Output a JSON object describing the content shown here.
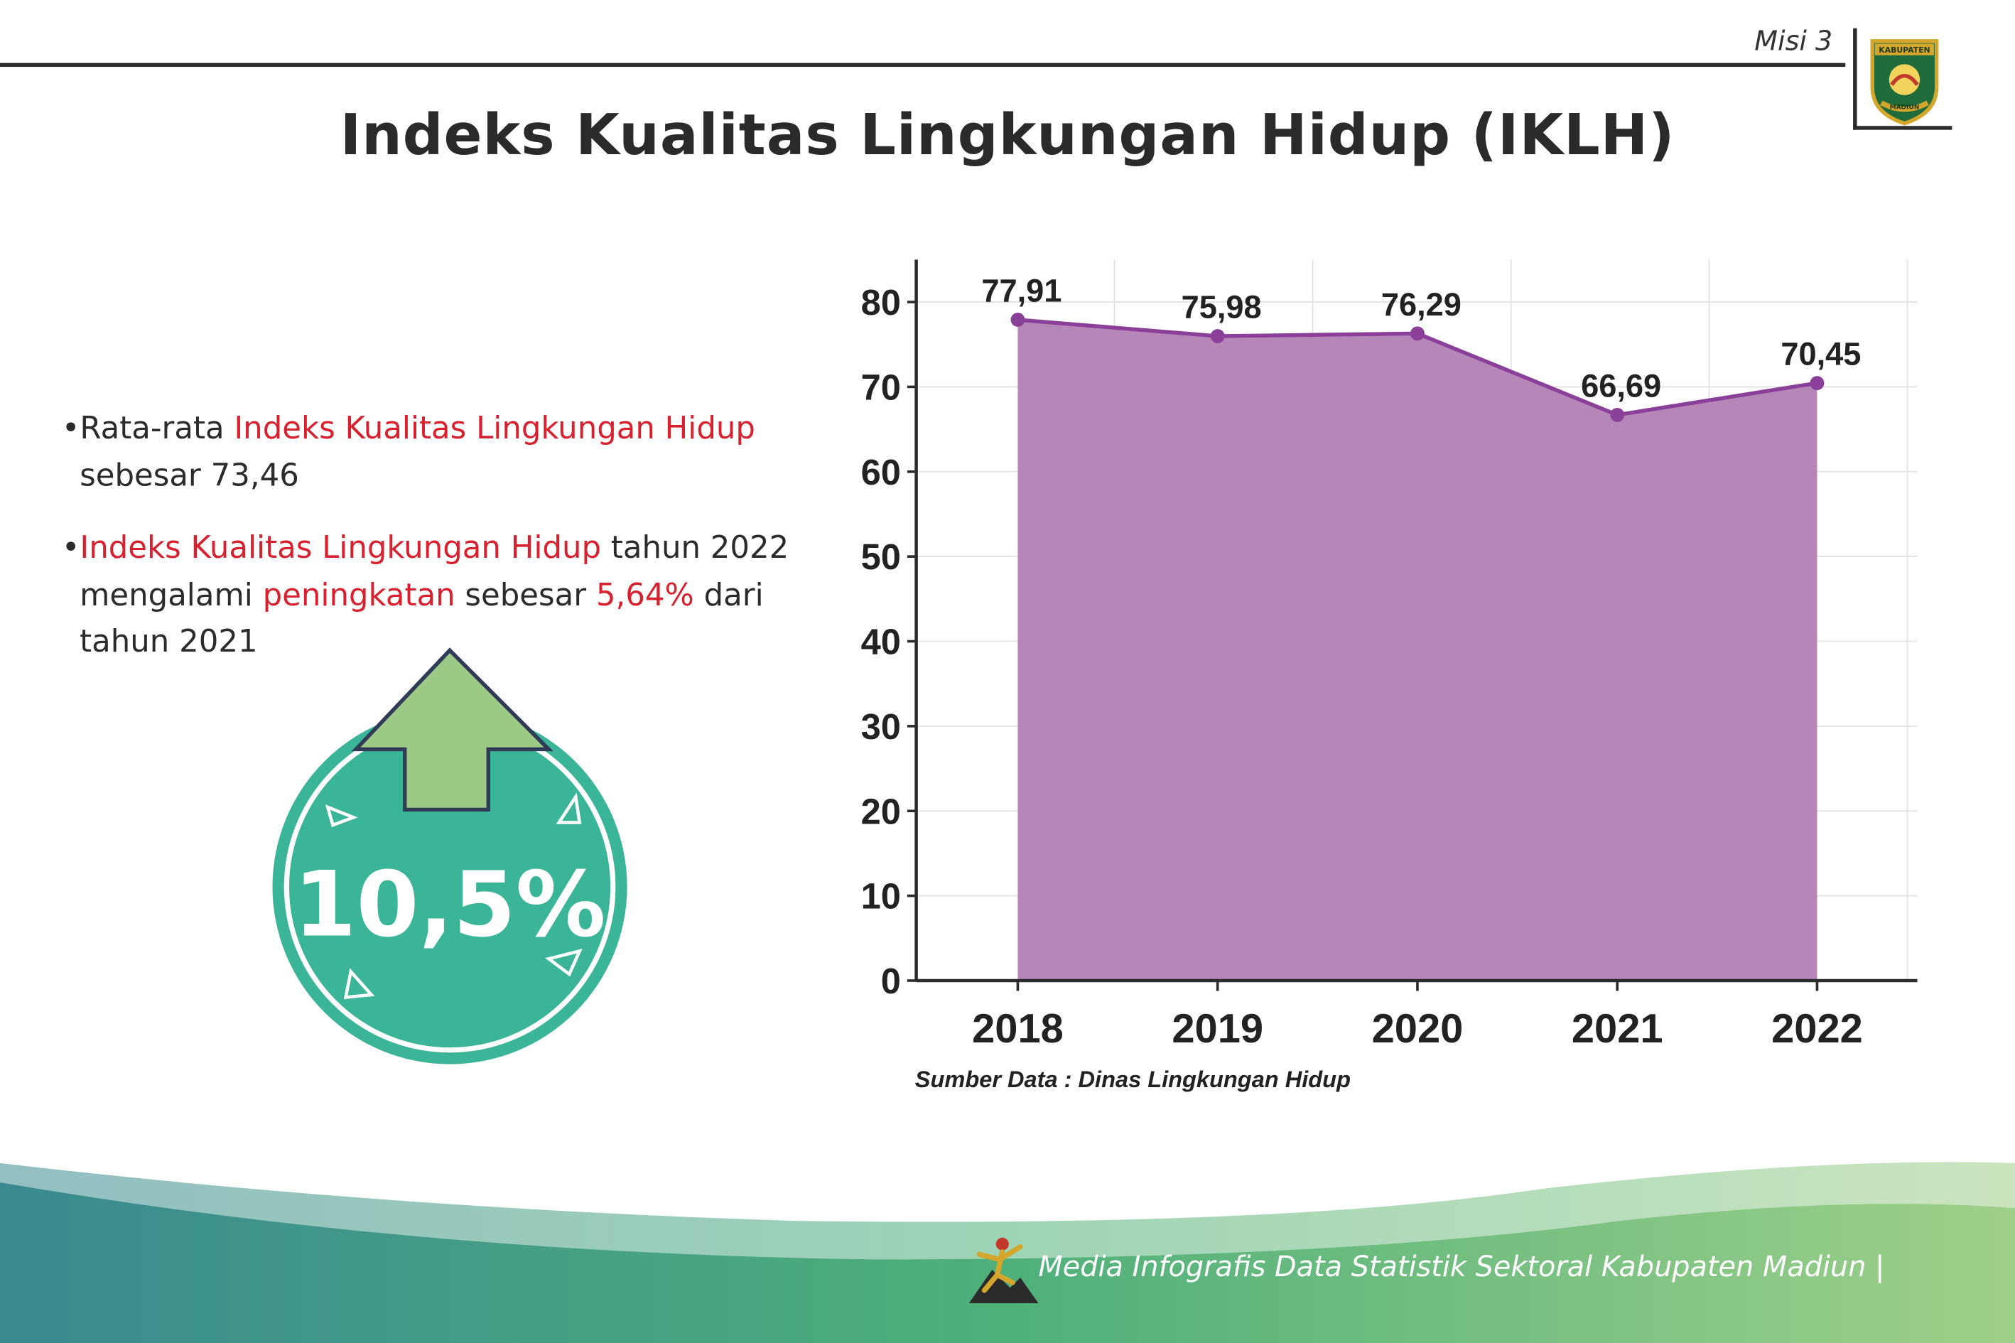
{
  "header": {
    "page_label": "Misi 3",
    "logo_text_top": "KABUPATEN",
    "logo_text_bottom": "MADIUN"
  },
  "title": "Indeks Kualitas Lingkungan Hidup (IKLH)",
  "bullets": [
    {
      "prefix": "•Rata-rata ",
      "highlight": "Indeks Kualitas Lingkungan Hidup",
      "rest": " sebesar 73,46"
    },
    {
      "prefix": "•",
      "highlight": "Indeks Kualitas Lingkungan Hidup",
      "mid": " tahun 2022 mengalami ",
      "highlight2": "peningkatan",
      "mid2": " sebesar ",
      "highlight3": "5,64%",
      "rest": " dari tahun 2021"
    }
  ],
  "badge": {
    "value": "10,5%",
    "circle_color": "#3bb597",
    "arrow_color": "#9cc985"
  },
  "chart_data": {
    "type": "area",
    "categories": [
      "2018",
      "2019",
      "2020",
      "2021",
      "2022"
    ],
    "values": [
      77.91,
      75.98,
      76.29,
      66.69,
      70.45
    ],
    "data_labels": [
      "77,91",
      "75,98",
      "76,29",
      "66,69",
      "70,45"
    ],
    "y_ticks": [
      0,
      10,
      20,
      30,
      40,
      50,
      60,
      70,
      80
    ],
    "ylim": [
      0,
      85
    ],
    "grid": true,
    "fill_color": "#b686b9",
    "line_color": "#8a3f99"
  },
  "source": "Sumber Data : Dinas Lingkungan Hidup",
  "footer": {
    "text": "Media Infografis Data Statistik Sektoral Kabupaten Madiun |",
    "wave_colors": [
      "#3a8a90",
      "#4fb07a",
      "#9fd08a"
    ]
  }
}
